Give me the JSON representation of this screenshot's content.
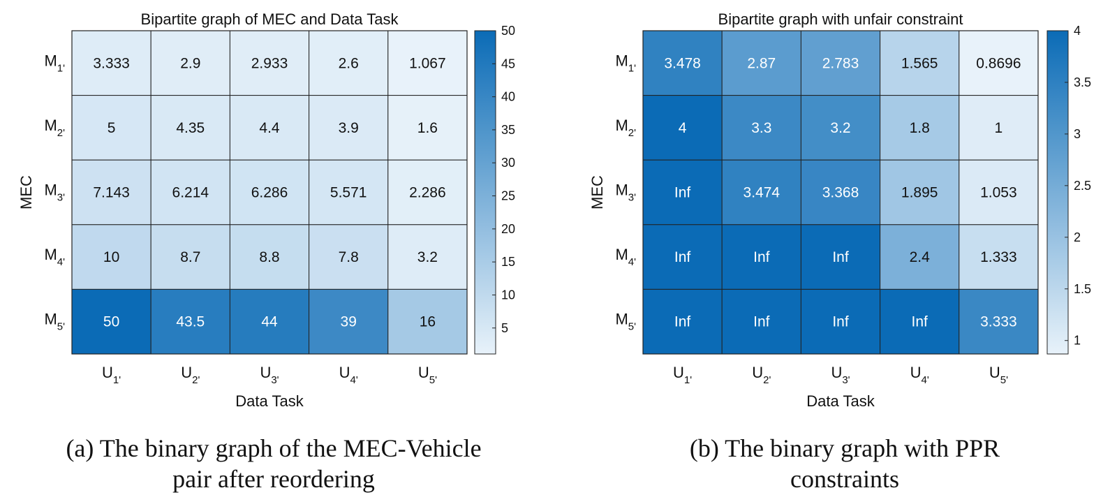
{
  "chart_data": [
    {
      "type": "heatmap",
      "title": "Bipartite graph of MEC and Data Task",
      "xlabel": "Data Task",
      "ylabel": "MEC",
      "rows": [
        {
          "main": "M",
          "sub": "1'"
        },
        {
          "main": "M",
          "sub": "2'"
        },
        {
          "main": "M",
          "sub": "3'"
        },
        {
          "main": "M",
          "sub": "4'"
        },
        {
          "main": "M",
          "sub": "5'"
        }
      ],
      "cols": [
        {
          "main": "U",
          "sub": "1'"
        },
        {
          "main": "U",
          "sub": "2'"
        },
        {
          "main": "U",
          "sub": "3'"
        },
        {
          "main": "U",
          "sub": "4'"
        },
        {
          "main": "U",
          "sub": "5'"
        }
      ],
      "values": [
        [
          "3.333",
          "2.9",
          "2.933",
          "2.6",
          "1.067"
        ],
        [
          "5",
          "4.35",
          "4.4",
          "3.9",
          "1.6"
        ],
        [
          "7.143",
          "6.214",
          "6.286",
          "5.571",
          "2.286"
        ],
        [
          "10",
          "8.7",
          "8.8",
          "7.8",
          "3.2"
        ],
        [
          "50",
          "43.5",
          "44",
          "39",
          "16"
        ]
      ],
      "colorbar": {
        "min": 1.067,
        "max": 50,
        "ticks": [
          "5",
          "10",
          "15",
          "20",
          "25",
          "30",
          "35",
          "40",
          "45",
          "50"
        ]
      },
      "caption": [
        "(a) The binary graph of the MEC-Vehicle",
        "pair after reordering"
      ]
    },
    {
      "type": "heatmap",
      "title": "Bipartite graph with unfair constraint",
      "xlabel": "Data Task",
      "ylabel": "MEC",
      "rows": [
        {
          "main": "M",
          "sub": "1'"
        },
        {
          "main": "M",
          "sub": "2'"
        },
        {
          "main": "M",
          "sub": "3'"
        },
        {
          "main": "M",
          "sub": "4'"
        },
        {
          "main": "M",
          "sub": "5'"
        }
      ],
      "cols": [
        {
          "main": "U",
          "sub": "1'"
        },
        {
          "main": "U",
          "sub": "2'"
        },
        {
          "main": "U",
          "sub": "3'"
        },
        {
          "main": "U",
          "sub": "4'"
        },
        {
          "main": "U",
          "sub": "5'"
        }
      ],
      "values": [
        [
          "3.478",
          "2.87",
          "2.783",
          "1.565",
          "0.8696"
        ],
        [
          "4",
          "3.3",
          "3.2",
          "1.8",
          "1"
        ],
        [
          "Inf",
          "3.474",
          "3.368",
          "1.895",
          "1.053"
        ],
        [
          "Inf",
          "Inf",
          "Inf",
          "2.4",
          "1.333"
        ],
        [
          "Inf",
          "Inf",
          "Inf",
          "Inf",
          "3.333"
        ]
      ],
      "colorbar": {
        "min": 0.8696,
        "max": 4,
        "ticks": [
          "1",
          "1.5",
          "2",
          "2.5",
          "3",
          "3.5",
          "4"
        ]
      },
      "caption": [
        "(b) The binary graph with PPR",
        "constraints"
      ]
    }
  ],
  "colors": {
    "low": "#e8f2fa",
    "high": "#0b6bb6",
    "grid": "#222222",
    "text_dark": "#111111",
    "text_light": "#ffffff"
  }
}
